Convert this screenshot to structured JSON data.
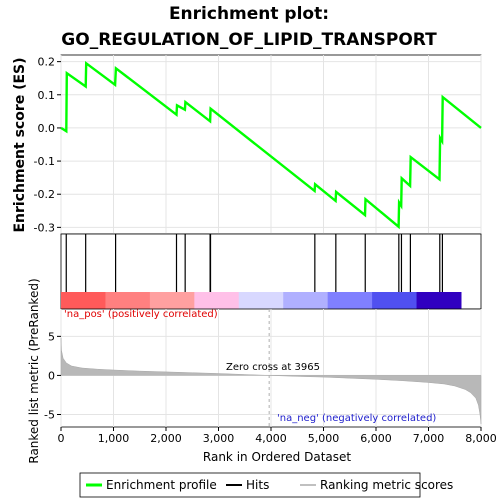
{
  "chart_data": {
    "type": "line",
    "title_line1": "Enrichment plot:",
    "title_line2": "GO_REGULATION_OF_LIPID_TRANSPORT",
    "xlabel": "Rank in Ordered Dataset",
    "ylabel_top": "Enrichment score (ES)",
    "ylabel_bottom": "Ranked list metric (PreRanked)",
    "xlim": [
      0,
      8000
    ],
    "es_ylim": [
      -0.32,
      0.22
    ],
    "metric_ylim": [
      -6.6,
      8.5
    ],
    "x_ticks": [
      0,
      1000,
      2000,
      3000,
      4000,
      5000,
      6000,
      7000,
      8000
    ],
    "x_tick_labels": [
      "0",
      "1,000",
      "2,000",
      "3,000",
      "4,000",
      "5,000",
      "6,000",
      "7,000",
      "8,000"
    ],
    "es_ticks": [
      0.2,
      0.1,
      0.0,
      -0.1,
      -0.2,
      -0.3
    ],
    "es_tick_labels": [
      "0.2",
      "0.1",
      "0.0",
      "-0.1",
      "-0.2",
      "-0.3"
    ],
    "metric_ticks": [
      5,
      0,
      -5
    ],
    "metric_tick_labels": [
      "5",
      "0",
      "-5"
    ],
    "enrichment_profile": {
      "name": "Enrichment profile",
      "color": "#00ff00",
      "x": [
        0,
        100,
        110,
        470,
        480,
        1030,
        1045,
        2200,
        2210,
        2360,
        2370,
        2840,
        2850,
        4830,
        4840,
        5230,
        5240,
        5790,
        5800,
        6430,
        6440,
        6480,
        6490,
        6650,
        6660,
        7210,
        7220,
        7260,
        7270,
        8000
      ],
      "y": [
        0.0,
        -0.01,
        0.165,
        0.125,
        0.195,
        0.13,
        0.18,
        0.04,
        0.068,
        0.055,
        0.078,
        0.02,
        0.058,
        -0.19,
        -0.17,
        -0.22,
        -0.193,
        -0.263,
        -0.215,
        -0.298,
        -0.225,
        -0.235,
        -0.152,
        -0.175,
        -0.088,
        -0.155,
        -0.03,
        -0.04,
        0.093,
        0.0
      ]
    },
    "hits": {
      "name": "Hits",
      "color": "#000000",
      "x": [
        100,
        470,
        1040,
        2200,
        2365,
        2840,
        2848,
        4835,
        5235,
        5795,
        6435,
        6485,
        6655,
        7215,
        7265
      ]
    },
    "ranking_metric": {
      "name": "Ranking metric scores",
      "color": "#c0c0c0",
      "zero_cross": 3965,
      "x": [
        0,
        10,
        40,
        100,
        200,
        400,
        700,
        1000,
        1500,
        2000,
        2500,
        3000,
        3500,
        3965,
        4500,
        5000,
        5500,
        6000,
        6500,
        7000,
        7300,
        7500,
        7700,
        7800,
        7900,
        7950,
        7980,
        8000
      ],
      "y": [
        4.8,
        3.2,
        2.2,
        1.6,
        1.2,
        0.95,
        0.8,
        0.7,
        0.55,
        0.45,
        0.35,
        0.25,
        0.12,
        0.0,
        -0.12,
        -0.22,
        -0.35,
        -0.5,
        -0.68,
        -0.9,
        -1.1,
        -1.35,
        -1.8,
        -2.2,
        -2.9,
        -3.8,
        -5.0,
        -6.2
      ]
    },
    "heatmap_colors": [
      "#ff5a5a",
      "#ff8080",
      "#ffa0a0",
      "#ffc0e8",
      "#d8d8ff",
      "#b0b0ff",
      "#8080ff",
      "#5050f0",
      "#3000c0"
    ],
    "annotations": {
      "pos": "'na_pos' (positively correlated)",
      "neg": "'na_neg' (negatively correlated)",
      "zero": "Zero cross at 3965"
    },
    "legend": [
      {
        "label": "Enrichment profile",
        "color": "#00ff00"
      },
      {
        "label": "Hits",
        "color": "#000000"
      },
      {
        "label": "Ranking metric scores",
        "color": "#c0c0c0"
      }
    ]
  }
}
